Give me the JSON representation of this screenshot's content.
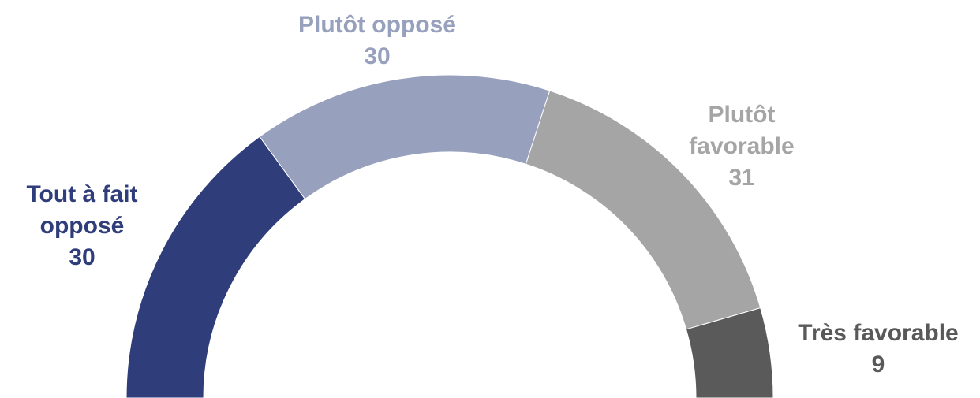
{
  "chart_data": {
    "type": "pie",
    "subtype": "half-donut",
    "slices": [
      {
        "label_lines": [
          "Tout à fait",
          "opposé"
        ],
        "label": "Tout à fait opposé",
        "value": 30,
        "value_label": "30",
        "color": "#2f3d7a",
        "label_color": "#2f3d7a"
      },
      {
        "label_lines": [
          "Plutôt opposé"
        ],
        "label": "Plutôt opposé",
        "value": 30,
        "value_label": "30",
        "color": "#97a0bd",
        "label_color": "#97a0bd"
      },
      {
        "label_lines": [
          "Plutôt",
          "favorable"
        ],
        "label": "Plutôt favorable",
        "value": 31,
        "value_label": "31",
        "color": "#a5a5a5",
        "label_color": "#a5a5a5"
      },
      {
        "label_lines": [
          "Très favorable"
        ],
        "label": "Très favorable",
        "value": 9,
        "value_label": "9",
        "color": "#5a5a5a",
        "label_color": "#595959"
      }
    ]
  }
}
